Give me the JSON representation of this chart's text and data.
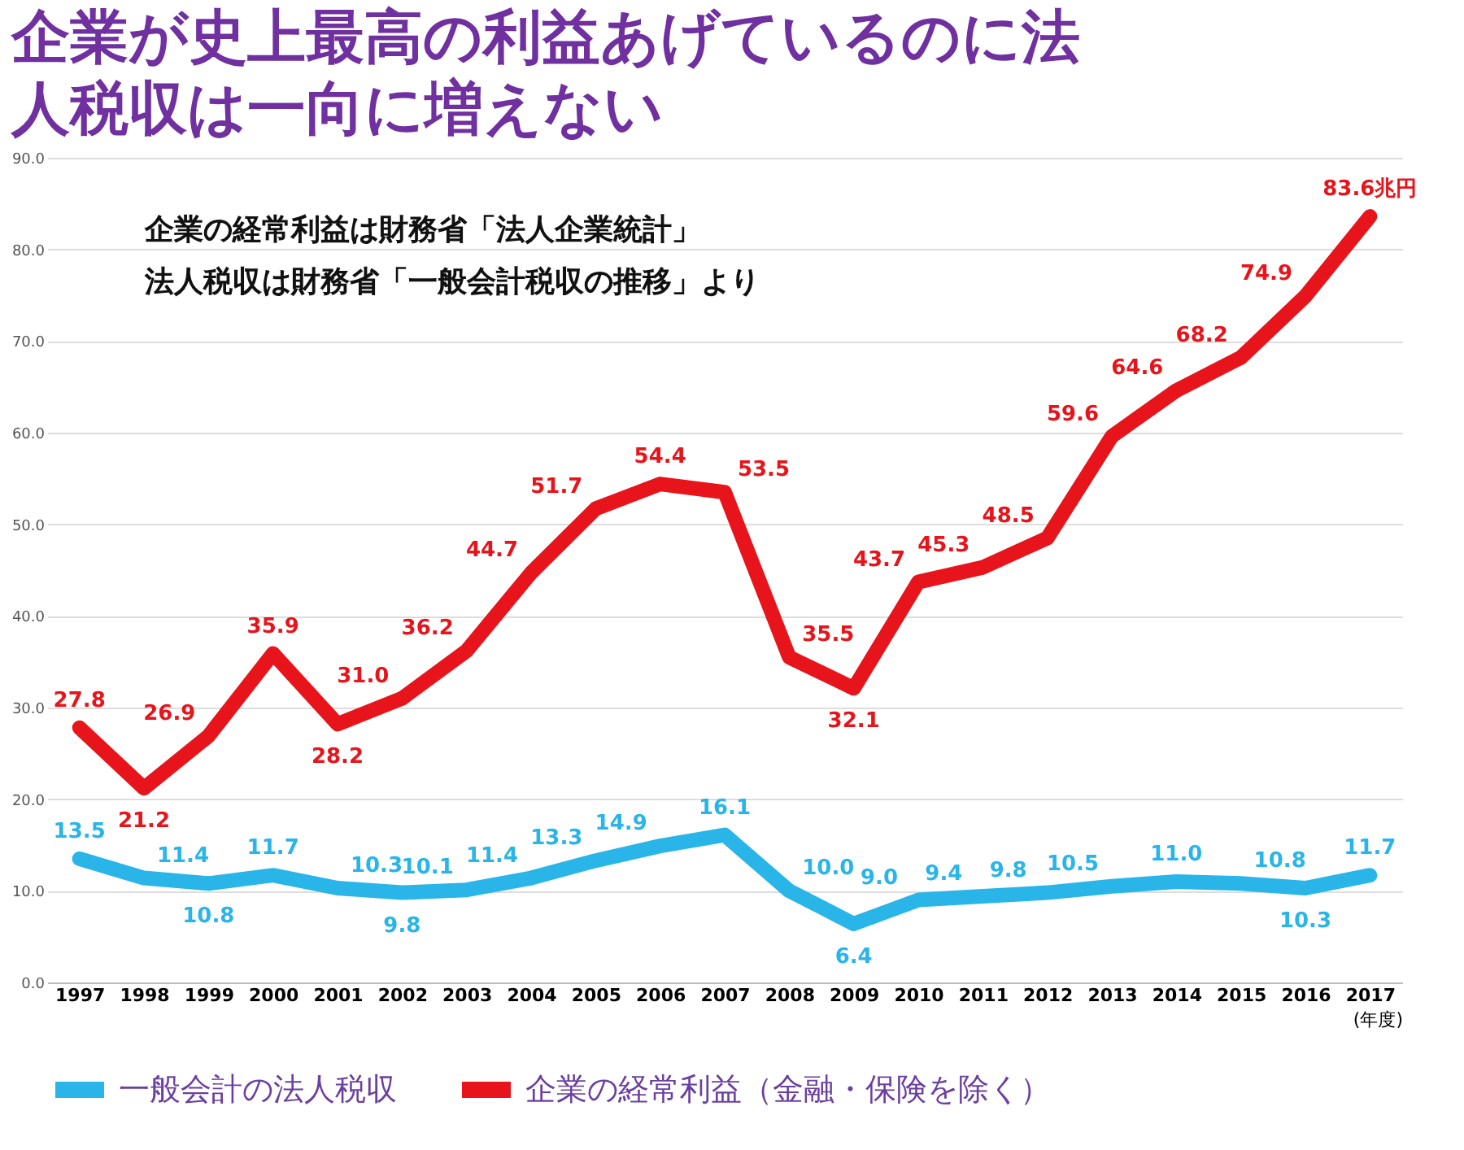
{
  "chart_data": {
    "type": "line",
    "title": "企業が史上最高の利益あげているのに法人税収は一向に増えない",
    "xlabel": "(年度)",
    "annotations": [
      "企業の経常利益は財務省「法人企業統計」",
      "法人税収は財務省「一般会計税収の推移」より"
    ],
    "categories": [
      "1997",
      "1998",
      "1999",
      "2000",
      "2001",
      "2002",
      "2003",
      "2004",
      "2005",
      "2006",
      "2007",
      "2008",
      "2009",
      "2010",
      "2011",
      "2012",
      "2013",
      "2014",
      "2015",
      "2016",
      "2017"
    ],
    "series": [
      {
        "name": "一般会計の法人税収",
        "color": "#29b5e8",
        "values": [
          13.5,
          11.4,
          10.8,
          11.7,
          10.3,
          9.8,
          10.1,
          11.4,
          13.3,
          14.9,
          16.1,
          10.0,
          6.4,
          9.0,
          9.4,
          9.8,
          10.5,
          11.0,
          10.8,
          10.3,
          11.7
        ],
        "value_labels": [
          "13.5",
          "11.4",
          "10.8",
          "11.7",
          "10.3",
          "9.8",
          "10.1",
          "11.4",
          "13.3",
          "14.9",
          "16.1",
          "10.0",
          "6.4",
          "9.0",
          "9.4",
          "9.8",
          "10.5",
          "11.0",
          "10.8",
          "10.3",
          "11.7"
        ]
      },
      {
        "name": "企業の経常利益（金融・保険を除く）",
        "color": "#e8141b",
        "values": [
          27.8,
          21.2,
          26.9,
          35.9,
          28.2,
          31.0,
          36.2,
          44.7,
          51.7,
          54.4,
          53.5,
          35.5,
          32.1,
          43.7,
          45.3,
          48.5,
          59.6,
          64.6,
          68.2,
          74.9,
          83.6
        ],
        "value_labels": [
          "27.8",
          "21.2",
          "26.9",
          "35.9",
          "28.2",
          "31.0",
          "36.2",
          "44.7",
          "51.7",
          "54.4",
          "53.5",
          "35.5",
          "32.1",
          "43.7",
          "45.3",
          "48.5",
          "59.6",
          "64.6",
          "68.2",
          "74.9",
          "83.6兆円"
        ]
      }
    ],
    "ylim": [
      0,
      90
    ],
    "yticks": [
      {
        "value": 0,
        "label": "0.0"
      },
      {
        "value": 10,
        "label": "10.0"
      },
      {
        "value": 20,
        "label": "20.0"
      },
      {
        "value": 30,
        "label": "30.0"
      },
      {
        "value": 40,
        "label": "40.0"
      },
      {
        "value": 50,
        "label": "50.0"
      },
      {
        "value": 60,
        "label": "60.0"
      },
      {
        "value": 70,
        "label": "70.0"
      },
      {
        "value": 80,
        "label": "80.0"
      },
      {
        "value": 90,
        "label": "90.0"
      }
    ],
    "grid": "y",
    "legend": "bottom",
    "line_style": "solid"
  }
}
